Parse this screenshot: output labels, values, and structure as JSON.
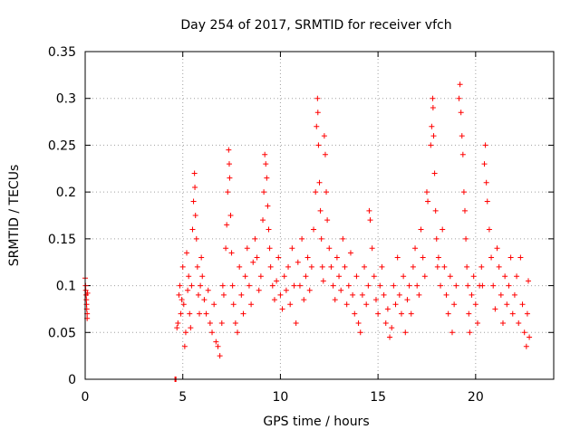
{
  "chart_data": {
    "type": "scatter",
    "title": "Day 254 of 2017, SRMTID for receiver vfch",
    "xlabel": "GPS time / hours",
    "ylabel": "SRMTID / TECUs",
    "xlim": [
      0,
      24
    ],
    "ylim": [
      0,
      0.35
    ],
    "xticks": [
      0,
      5,
      10,
      15,
      20
    ],
    "xtick_labels": [
      "0",
      "5",
      "10",
      "15",
      "20"
    ],
    "yticks": [
      0,
      0.05,
      0.1,
      0.15,
      0.2,
      0.25,
      0.3,
      0.35
    ],
    "ytick_labels": [
      "0",
      "0.05",
      "0.1",
      "0.15",
      "0.2",
      "0.25",
      "0.3",
      "0.35"
    ],
    "grid": true,
    "marker": "+",
    "color": "#ff0000",
    "points": [
      [
        0.0,
        0.108
      ],
      [
        0.02,
        0.1
      ],
      [
        0.03,
        0.095
      ],
      [
        0.05,
        0.09
      ],
      [
        0.06,
        0.085
      ],
      [
        0.07,
        0.08
      ],
      [
        0.08,
        0.075
      ],
      [
        0.1,
        0.07
      ],
      [
        0.1,
        0.065
      ],
      [
        0.12,
        0.092
      ],
      [
        4.6,
        0.0
      ],
      [
        4.65,
        0.0
      ],
      [
        4.62,
        0.0
      ],
      [
        4.7,
        0.055
      ],
      [
        4.75,
        0.06
      ],
      [
        4.8,
        0.09
      ],
      [
        4.85,
        0.1
      ],
      [
        4.9,
        0.07
      ],
      [
        4.95,
        0.085
      ],
      [
        5.0,
        0.12
      ],
      [
        5.05,
        0.08
      ],
      [
        5.1,
        0.035
      ],
      [
        5.15,
        0.05
      ],
      [
        5.2,
        0.135
      ],
      [
        5.25,
        0.095
      ],
      [
        5.3,
        0.11
      ],
      [
        5.35,
        0.07
      ],
      [
        5.4,
        0.055
      ],
      [
        5.45,
        0.1
      ],
      [
        5.5,
        0.16
      ],
      [
        5.55,
        0.19
      ],
      [
        5.6,
        0.22
      ],
      [
        5.62,
        0.205
      ],
      [
        5.65,
        0.175
      ],
      [
        5.7,
        0.15
      ],
      [
        5.75,
        0.12
      ],
      [
        5.8,
        0.09
      ],
      [
        5.85,
        0.07
      ],
      [
        5.9,
        0.1
      ],
      [
        5.95,
        0.13
      ],
      [
        6.0,
        0.11
      ],
      [
        6.1,
        0.085
      ],
      [
        6.2,
        0.07
      ],
      [
        6.3,
        0.095
      ],
      [
        6.4,
        0.06
      ],
      [
        6.5,
        0.05
      ],
      [
        6.6,
        0.08
      ],
      [
        6.7,
        0.04
      ],
      [
        6.8,
        0.035
      ],
      [
        6.9,
        0.025
      ],
      [
        7.0,
        0.06
      ],
      [
        7.05,
        0.1
      ],
      [
        7.1,
        0.09
      ],
      [
        7.2,
        0.14
      ],
      [
        7.25,
        0.165
      ],
      [
        7.3,
        0.2
      ],
      [
        7.35,
        0.245
      ],
      [
        7.38,
        0.23
      ],
      [
        7.4,
        0.215
      ],
      [
        7.45,
        0.175
      ],
      [
        7.5,
        0.135
      ],
      [
        7.55,
        0.1
      ],
      [
        7.6,
        0.08
      ],
      [
        7.7,
        0.06
      ],
      [
        7.8,
        0.05
      ],
      [
        7.9,
        0.12
      ],
      [
        8.0,
        0.09
      ],
      [
        8.1,
        0.07
      ],
      [
        8.2,
        0.11
      ],
      [
        8.3,
        0.14
      ],
      [
        8.4,
        0.1
      ],
      [
        8.5,
        0.08
      ],
      [
        8.6,
        0.125
      ],
      [
        8.7,
        0.15
      ],
      [
        8.8,
        0.13
      ],
      [
        8.9,
        0.095
      ],
      [
        9.0,
        0.11
      ],
      [
        9.1,
        0.17
      ],
      [
        9.15,
        0.2
      ],
      [
        9.2,
        0.24
      ],
      [
        9.25,
        0.23
      ],
      [
        9.3,
        0.215
      ],
      [
        9.35,
        0.185
      ],
      [
        9.4,
        0.16
      ],
      [
        9.45,
        0.14
      ],
      [
        9.5,
        0.12
      ],
      [
        9.6,
        0.1
      ],
      [
        9.7,
        0.085
      ],
      [
        9.8,
        0.105
      ],
      [
        9.9,
        0.13
      ],
      [
        10.0,
        0.09
      ],
      [
        10.1,
        0.075
      ],
      [
        10.2,
        0.11
      ],
      [
        10.3,
        0.095
      ],
      [
        10.4,
        0.12
      ],
      [
        10.5,
        0.08
      ],
      [
        10.6,
        0.14
      ],
      [
        10.7,
        0.1
      ],
      [
        10.8,
        0.06
      ],
      [
        10.9,
        0.125
      ],
      [
        11.0,
        0.1
      ],
      [
        11.1,
        0.15
      ],
      [
        11.2,
        0.085
      ],
      [
        11.3,
        0.11
      ],
      [
        11.4,
        0.13
      ],
      [
        11.5,
        0.095
      ],
      [
        11.6,
        0.12
      ],
      [
        11.7,
        0.16
      ],
      [
        11.8,
        0.2
      ],
      [
        11.85,
        0.27
      ],
      [
        11.9,
        0.3
      ],
      [
        11.92,
        0.285
      ],
      [
        11.95,
        0.25
      ],
      [
        12.0,
        0.21
      ],
      [
        12.05,
        0.18
      ],
      [
        12.1,
        0.15
      ],
      [
        12.15,
        0.12
      ],
      [
        12.2,
        0.105
      ],
      [
        12.25,
        0.26
      ],
      [
        12.3,
        0.24
      ],
      [
        12.35,
        0.2
      ],
      [
        12.4,
        0.17
      ],
      [
        12.5,
        0.14
      ],
      [
        12.6,
        0.12
      ],
      [
        12.7,
        0.1
      ],
      [
        12.8,
        0.085
      ],
      [
        12.9,
        0.13
      ],
      [
        13.0,
        0.11
      ],
      [
        13.1,
        0.095
      ],
      [
        13.2,
        0.15
      ],
      [
        13.3,
        0.12
      ],
      [
        13.4,
        0.08
      ],
      [
        13.5,
        0.1
      ],
      [
        13.6,
        0.135
      ],
      [
        13.7,
        0.09
      ],
      [
        13.8,
        0.07
      ],
      [
        13.9,
        0.11
      ],
      [
        14.0,
        0.06
      ],
      [
        14.1,
        0.05
      ],
      [
        14.2,
        0.09
      ],
      [
        14.3,
        0.12
      ],
      [
        14.4,
        0.08
      ],
      [
        14.5,
        0.1
      ],
      [
        14.55,
        0.18
      ],
      [
        14.6,
        0.17
      ],
      [
        14.7,
        0.14
      ],
      [
        14.8,
        0.11
      ],
      [
        14.9,
        0.085
      ],
      [
        15.0,
        0.07
      ],
      [
        15.1,
        0.1
      ],
      [
        15.2,
        0.12
      ],
      [
        15.3,
        0.09
      ],
      [
        15.4,
        0.06
      ],
      [
        15.5,
        0.075
      ],
      [
        15.6,
        0.045
      ],
      [
        15.7,
        0.055
      ],
      [
        15.8,
        0.1
      ],
      [
        15.9,
        0.08
      ],
      [
        16.0,
        0.13
      ],
      [
        16.1,
        0.09
      ],
      [
        16.2,
        0.07
      ],
      [
        16.3,
        0.11
      ],
      [
        16.4,
        0.05
      ],
      [
        16.5,
        0.085
      ],
      [
        16.6,
        0.1
      ],
      [
        16.7,
        0.07
      ],
      [
        16.8,
        0.12
      ],
      [
        16.9,
        0.14
      ],
      [
        17.0,
        0.1
      ],
      [
        17.1,
        0.09
      ],
      [
        17.2,
        0.16
      ],
      [
        17.3,
        0.13
      ],
      [
        17.4,
        0.11
      ],
      [
        17.5,
        0.2
      ],
      [
        17.55,
        0.19
      ],
      [
        17.7,
        0.25
      ],
      [
        17.75,
        0.27
      ],
      [
        17.8,
        0.3
      ],
      [
        17.82,
        0.29
      ],
      [
        17.85,
        0.26
      ],
      [
        17.9,
        0.22
      ],
      [
        17.95,
        0.18
      ],
      [
        18.0,
        0.15
      ],
      [
        18.05,
        0.12
      ],
      [
        18.1,
        0.13
      ],
      [
        18.2,
        0.1
      ],
      [
        18.3,
        0.16
      ],
      [
        18.4,
        0.12
      ],
      [
        18.5,
        0.09
      ],
      [
        18.6,
        0.07
      ],
      [
        18.7,
        0.11
      ],
      [
        18.8,
        0.05
      ],
      [
        18.9,
        0.08
      ],
      [
        19.0,
        0.1
      ],
      [
        19.15,
        0.3
      ],
      [
        19.2,
        0.315
      ],
      [
        19.25,
        0.285
      ],
      [
        19.3,
        0.26
      ],
      [
        19.35,
        0.24
      ],
      [
        19.4,
        0.2
      ],
      [
        19.45,
        0.18
      ],
      [
        19.5,
        0.15
      ],
      [
        19.55,
        0.12
      ],
      [
        19.6,
        0.1
      ],
      [
        19.65,
        0.07
      ],
      [
        19.7,
        0.05
      ],
      [
        19.8,
        0.09
      ],
      [
        19.9,
        0.11
      ],
      [
        20.0,
        0.08
      ],
      [
        20.1,
        0.06
      ],
      [
        20.2,
        0.1
      ],
      [
        20.3,
        0.12
      ],
      [
        20.35,
        0.1
      ],
      [
        20.45,
        0.23
      ],
      [
        20.5,
        0.25
      ],
      [
        20.55,
        0.21
      ],
      [
        20.6,
        0.19
      ],
      [
        20.7,
        0.16
      ],
      [
        20.8,
        0.13
      ],
      [
        20.9,
        0.1
      ],
      [
        21.0,
        0.075
      ],
      [
        21.1,
        0.14
      ],
      [
        21.2,
        0.12
      ],
      [
        21.3,
        0.09
      ],
      [
        21.4,
        0.06
      ],
      [
        21.5,
        0.11
      ],
      [
        21.6,
        0.08
      ],
      [
        21.7,
        0.1
      ],
      [
        21.8,
        0.13
      ],
      [
        21.9,
        0.07
      ],
      [
        22.0,
        0.09
      ],
      [
        22.1,
        0.11
      ],
      [
        22.2,
        0.06
      ],
      [
        22.3,
        0.13
      ],
      [
        22.4,
        0.08
      ],
      [
        22.5,
        0.05
      ],
      [
        22.6,
        0.035
      ],
      [
        22.65,
        0.07
      ],
      [
        22.7,
        0.105
      ],
      [
        22.75,
        0.045
      ]
    ]
  }
}
